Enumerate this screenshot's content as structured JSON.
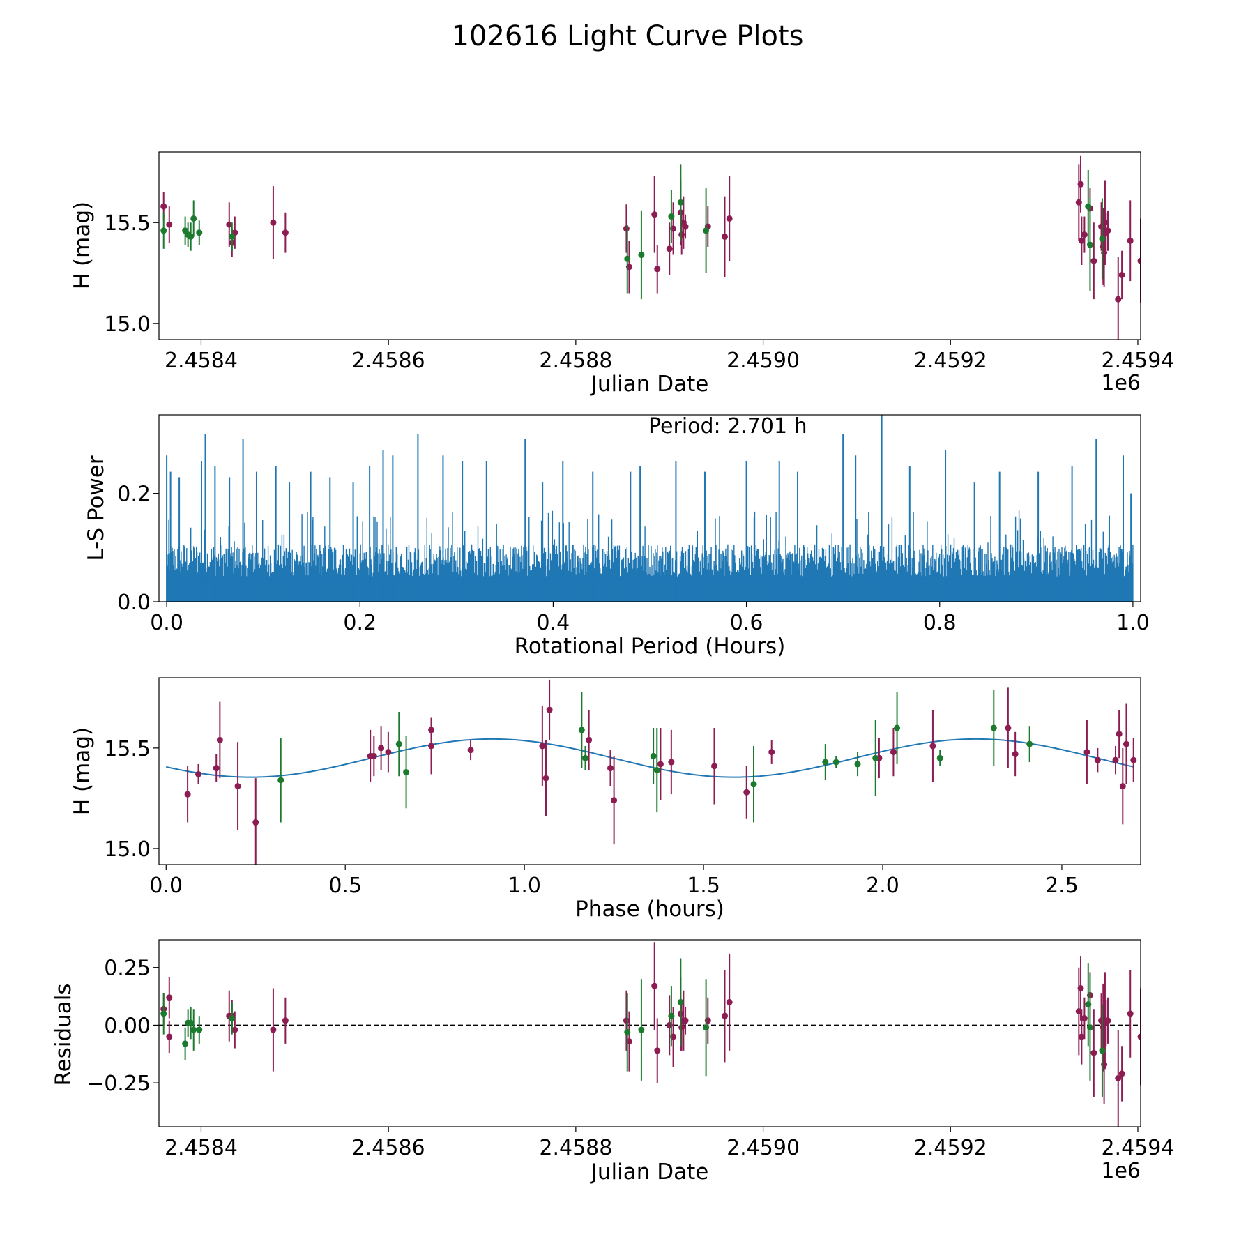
{
  "figure_title": "102616 Light Curve Plots",
  "colors": {
    "magenta": "#8c1c52",
    "green": "#1b7a2e",
    "curve": "#1f77b4",
    "axis": "#000000"
  },
  "chart_data": [
    {
      "id": "lightcurve",
      "type": "scatter",
      "title": "",
      "xlabel": "Julian Date",
      "ylabel": "H (mag)",
      "xlim": [
        2458355,
        2459403
      ],
      "ylim": [
        14.92,
        15.85
      ],
      "x_offset_label": "1e6",
      "xticks": [
        2458400,
        2458600,
        2458800,
        2459000,
        2459200,
        2459400
      ],
      "xtick_labels": [
        "2.4584",
        "2.4586",
        "2.4588",
        "2.4590",
        "2.4592",
        "2.4594"
      ],
      "yticks": [
        15.0,
        15.5
      ],
      "ytick_labels": [
        "15.0",
        "15.5"
      ],
      "series": [
        {
          "name": "magenta",
          "points": [
            [
              2458360,
              15.58,
              0.07
            ],
            [
              2458366,
              15.49,
              0.09
            ],
            [
              2458430,
              15.49,
              0.11
            ],
            [
              2458433,
              15.4,
              0.07
            ],
            [
              2458436,
              15.45,
              0.08
            ],
            [
              2458477,
              15.5,
              0.18
            ],
            [
              2458490,
              15.45,
              0.1
            ],
            [
              2458854,
              15.47,
              0.12
            ],
            [
              2458857,
              15.28,
              0.13
            ],
            [
              2458884,
              15.54,
              0.19
            ],
            [
              2458887,
              15.27,
              0.12
            ],
            [
              2458900,
              15.37,
              0.13
            ],
            [
              2458904,
              15.47,
              0.13
            ],
            [
              2458912,
              15.55,
              0.16
            ],
            [
              2458913,
              15.44,
              0.1
            ],
            [
              2458915,
              15.5,
              0.13
            ],
            [
              2458917,
              15.48,
              0.06
            ],
            [
              2458941,
              15.48,
              0.1
            ],
            [
              2458959,
              15.43,
              0.2
            ],
            [
              2458964,
              15.52,
              0.21
            ],
            [
              2459337,
              15.6,
              0.19
            ],
            [
              2459339,
              15.69,
              0.14
            ],
            [
              2459340,
              15.41,
              0.12
            ],
            [
              2459343,
              15.44,
              0.09
            ],
            [
              2459349,
              15.57,
              0.1
            ],
            [
              2459353,
              15.31,
              0.19
            ],
            [
              2459361,
              15.48,
              0.12
            ],
            [
              2459363,
              15.38,
              0.19
            ],
            [
              2459364,
              15.35,
              0.17
            ],
            [
              2459365,
              15.5,
              0.21
            ],
            [
              2459366,
              15.45,
              0.1
            ],
            [
              2459368,
              15.46,
              0.1
            ],
            [
              2459379,
              15.12,
              0.21
            ],
            [
              2459383,
              15.24,
              0.12
            ],
            [
              2459392,
              15.41,
              0.2
            ],
            [
              2459403,
              15.31,
              0.21
            ]
          ]
        },
        {
          "name": "green",
          "points": [
            [
              2458360,
              15.46,
              0.09
            ],
            [
              2458383,
              15.46,
              0.07
            ],
            [
              2458386,
              15.44,
              0.06
            ],
            [
              2458389,
              15.43,
              0.07
            ],
            [
              2458392,
              15.52,
              0.09
            ],
            [
              2458398,
              15.45,
              0.06
            ],
            [
              2458433,
              15.43,
              0.07
            ],
            [
              2458855,
              15.32,
              0.17
            ],
            [
              2458870,
              15.34,
              0.22
            ],
            [
              2458902,
              15.53,
              0.13
            ],
            [
              2458912,
              15.6,
              0.19
            ],
            [
              2458939,
              15.46,
              0.21
            ],
            [
              2459347,
              15.58,
              0.18
            ],
            [
              2459349,
              15.39,
              0.23
            ],
            [
              2459362,
              15.42,
              0.2
            ]
          ]
        }
      ]
    },
    {
      "id": "periodogram",
      "type": "line",
      "title": "",
      "xlabel": "Rotational Period (Hours)",
      "ylabel": "L-S Power",
      "xlim": [
        -0.008,
        1.008
      ],
      "ylim": [
        0,
        0.345
      ],
      "xticks": [
        0.0,
        0.2,
        0.4,
        0.6,
        0.8,
        1.0
      ],
      "xtick_labels": [
        "0.0",
        "0.2",
        "0.4",
        "0.6",
        "0.8",
        "1.0"
      ],
      "yticks": [
        0.0,
        0.2
      ],
      "ytick_labels": [
        "0.0",
        "0.2"
      ],
      "annotation": "Period: 2.701 h",
      "base_level": 0.085,
      "peaks": [
        [
          0.0,
          0.27
        ],
        [
          0.004,
          0.24
        ],
        [
          0.013,
          0.23
        ],
        [
          0.036,
          0.26
        ],
        [
          0.04,
          0.31
        ],
        [
          0.05,
          0.25
        ],
        [
          0.065,
          0.23
        ],
        [
          0.079,
          0.3
        ],
        [
          0.093,
          0.24
        ],
        [
          0.113,
          0.25
        ],
        [
          0.127,
          0.22
        ],
        [
          0.149,
          0.24
        ],
        [
          0.169,
          0.23
        ],
        [
          0.193,
          0.22
        ],
        [
          0.21,
          0.25
        ],
        [
          0.224,
          0.28
        ],
        [
          0.234,
          0.27
        ],
        [
          0.26,
          0.31
        ],
        [
          0.286,
          0.27
        ],
        [
          0.306,
          0.26
        ],
        [
          0.331,
          0.26
        ],
        [
          0.371,
          0.3
        ],
        [
          0.389,
          0.22
        ],
        [
          0.41,
          0.26
        ],
        [
          0.441,
          0.24
        ],
        [
          0.48,
          0.24
        ],
        [
          0.49,
          0.25
        ],
        [
          0.527,
          0.26
        ],
        [
          0.557,
          0.24
        ],
        [
          0.6,
          0.26
        ],
        [
          0.634,
          0.26
        ],
        [
          0.653,
          0.24
        ],
        [
          0.7,
          0.31
        ],
        [
          0.713,
          0.27
        ],
        [
          0.74,
          0.345
        ],
        [
          0.769,
          0.25
        ],
        [
          0.806,
          0.28
        ],
        [
          0.836,
          0.22
        ],
        [
          0.862,
          0.24
        ],
        [
          0.902,
          0.24
        ],
        [
          0.937,
          0.25
        ],
        [
          0.962,
          0.3
        ],
        [
          0.99,
          0.27
        ],
        [
          0.998,
          0.2
        ]
      ]
    },
    {
      "id": "phased",
      "type": "scatter",
      "title": "",
      "xlabel": "Phase (hours)",
      "ylabel": "H (mag)",
      "xlim": [
        -0.02,
        2.72
      ],
      "ylim": [
        14.92,
        15.85
      ],
      "xticks": [
        0.0,
        0.5,
        1.0,
        1.5,
        2.0,
        2.5
      ],
      "xtick_labels": [
        "0.0",
        "0.5",
        "1.0",
        "1.5",
        "2.0",
        "2.5"
      ],
      "yticks": [
        15.0,
        15.5
      ],
      "ytick_labels": [
        "15.0",
        "15.5"
      ],
      "fit_curve": {
        "mean": 15.45,
        "amplitude": 0.095,
        "period_hours": 2.701,
        "cycles": 2,
        "peak_phase": 0.91
      },
      "series": [
        {
          "name": "magenta",
          "points": [
            [
              0.06,
              15.27,
              0.14
            ],
            [
              0.09,
              15.37,
              0.05
            ],
            [
              0.14,
              15.4,
              0.07
            ],
            [
              0.15,
              15.54,
              0.19
            ],
            [
              0.2,
              15.31,
              0.22
            ],
            [
              0.25,
              15.13,
              0.22
            ],
            [
              0.57,
              15.46,
              0.13
            ],
            [
              0.58,
              15.46,
              0.1
            ],
            [
              0.6,
              15.5,
              0.11
            ],
            [
              0.62,
              15.48,
              0.1
            ],
            [
              0.74,
              15.59,
              0.06
            ],
            [
              0.74,
              15.51,
              0.14
            ],
            [
              0.85,
              15.49,
              0.05
            ],
            [
              1.05,
              15.51,
              0.2
            ],
            [
              1.06,
              15.35,
              0.19
            ],
            [
              1.07,
              15.69,
              0.15
            ],
            [
              1.18,
              15.54,
              0.15
            ],
            [
              1.24,
              15.4,
              0.09
            ],
            [
              1.25,
              15.24,
              0.22
            ],
            [
              1.38,
              15.42,
              0.18
            ],
            [
              1.41,
              15.43,
              0.16
            ],
            [
              1.53,
              15.41,
              0.19
            ],
            [
              1.62,
              15.28,
              0.13
            ],
            [
              1.69,
              15.48,
              0.06
            ],
            [
              1.99,
              15.45,
              0.1
            ],
            [
              2.03,
              15.48,
              0.12
            ],
            [
              2.14,
              15.51,
              0.18
            ],
            [
              2.35,
              15.6,
              0.2
            ],
            [
              2.37,
              15.47,
              0.11
            ],
            [
              2.57,
              15.48,
              0.16
            ],
            [
              2.6,
              15.44,
              0.06
            ],
            [
              2.65,
              15.44,
              0.07
            ],
            [
              2.66,
              15.57,
              0.12
            ],
            [
              2.67,
              15.31,
              0.19
            ],
            [
              2.68,
              15.52,
              0.2
            ],
            [
              2.7,
              15.44,
              0.11
            ]
          ]
        },
        {
          "name": "green",
          "points": [
            [
              0.32,
              15.34,
              0.21
            ],
            [
              0.65,
              15.52,
              0.16
            ],
            [
              0.67,
              15.38,
              0.18
            ],
            [
              1.16,
              15.59,
              0.19
            ],
            [
              1.17,
              15.45,
              0.06
            ],
            [
              1.36,
              15.46,
              0.14
            ],
            [
              1.37,
              15.39,
              0.21
            ],
            [
              1.64,
              15.32,
              0.19
            ],
            [
              1.84,
              15.43,
              0.09
            ],
            [
              1.87,
              15.43,
              0.03
            ],
            [
              1.93,
              15.42,
              0.06
            ],
            [
              1.98,
              15.45,
              0.19
            ],
            [
              2.04,
              15.6,
              0.18
            ],
            [
              2.16,
              15.45,
              0.04
            ],
            [
              2.31,
              15.6,
              0.19
            ],
            [
              2.41,
              15.52,
              0.09
            ]
          ]
        }
      ]
    },
    {
      "id": "residuals",
      "type": "scatter",
      "title": "",
      "xlabel": "Julian Date",
      "ylabel": "Residuals",
      "xlim": [
        2458355,
        2459403
      ],
      "ylim": [
        -0.44,
        0.37
      ],
      "x_offset_label": "1e6",
      "xticks": [
        2458400,
        2458600,
        2458800,
        2459000,
        2459200,
        2459400
      ],
      "xtick_labels": [
        "2.4584",
        "2.4586",
        "2.4588",
        "2.4590",
        "2.4592",
        "2.4594"
      ],
      "yticks": [
        0.25,
        0.0,
        -0.25
      ],
      "ytick_labels": [
        "0.25",
        "0.00",
        "−0.25"
      ],
      "zero_line": true,
      "series": [
        {
          "name": "magenta",
          "points": [
            [
              2458360,
              0.07,
              0.07
            ],
            [
              2458366,
              0.12,
              0.09
            ],
            [
              2458366,
              -0.05,
              0.07
            ],
            [
              2458430,
              0.04,
              0.11
            ],
            [
              2458433,
              0.04,
              0.07
            ],
            [
              2458436,
              -0.02,
              0.08
            ],
            [
              2458477,
              -0.02,
              0.18
            ],
            [
              2458490,
              0.02,
              0.1
            ],
            [
              2458854,
              0.02,
              0.13
            ],
            [
              2458857,
              -0.07,
              0.13
            ],
            [
              2458884,
              0.17,
              0.19
            ],
            [
              2458887,
              -0.11,
              0.14
            ],
            [
              2458900,
              0.0,
              0.13
            ],
            [
              2458904,
              -0.05,
              0.13
            ],
            [
              2458912,
              0.05,
              0.16
            ],
            [
              2458913,
              -0.01,
              0.1
            ],
            [
              2458915,
              0.02,
              0.13
            ],
            [
              2458917,
              0.02,
              0.06
            ],
            [
              2458941,
              0.02,
              0.1
            ],
            [
              2458959,
              0.04,
              0.2
            ],
            [
              2458964,
              0.1,
              0.21
            ],
            [
              2459337,
              0.06,
              0.19
            ],
            [
              2459339,
              0.16,
              0.14
            ],
            [
              2459340,
              -0.05,
              0.12
            ],
            [
              2459343,
              0.03,
              0.09
            ],
            [
              2459349,
              0.13,
              0.1
            ],
            [
              2459353,
              -0.12,
              0.19
            ],
            [
              2459361,
              0.02,
              0.12
            ],
            [
              2459363,
              -0.01,
              0.19
            ],
            [
              2459364,
              -0.17,
              0.17
            ],
            [
              2459365,
              0.02,
              0.21
            ],
            [
              2459366,
              0.01,
              0.1
            ],
            [
              2459368,
              0.02,
              0.1
            ],
            [
              2459379,
              -0.23,
              0.21
            ],
            [
              2459383,
              -0.21,
              0.12
            ],
            [
              2459392,
              0.05,
              0.19
            ],
            [
              2459403,
              -0.05,
              0.21
            ]
          ]
        },
        {
          "name": "green",
          "points": [
            [
              2458360,
              0.05,
              0.09
            ],
            [
              2458383,
              -0.08,
              0.07
            ],
            [
              2458386,
              0.01,
              0.06
            ],
            [
              2458389,
              0.01,
              0.07
            ],
            [
              2458392,
              -0.02,
              0.09
            ],
            [
              2458398,
              -0.02,
              0.06
            ],
            [
              2458433,
              0.03,
              0.07
            ],
            [
              2458855,
              -0.03,
              0.17
            ],
            [
              2458870,
              -0.02,
              0.22
            ],
            [
              2458902,
              0.04,
              0.13
            ],
            [
              2458912,
              0.1,
              0.19
            ],
            [
              2458939,
              -0.01,
              0.21
            ],
            [
              2459347,
              0.09,
              0.18
            ],
            [
              2459349,
              -0.01,
              0.23
            ],
            [
              2459362,
              -0.11,
              0.2
            ]
          ]
        }
      ]
    }
  ]
}
